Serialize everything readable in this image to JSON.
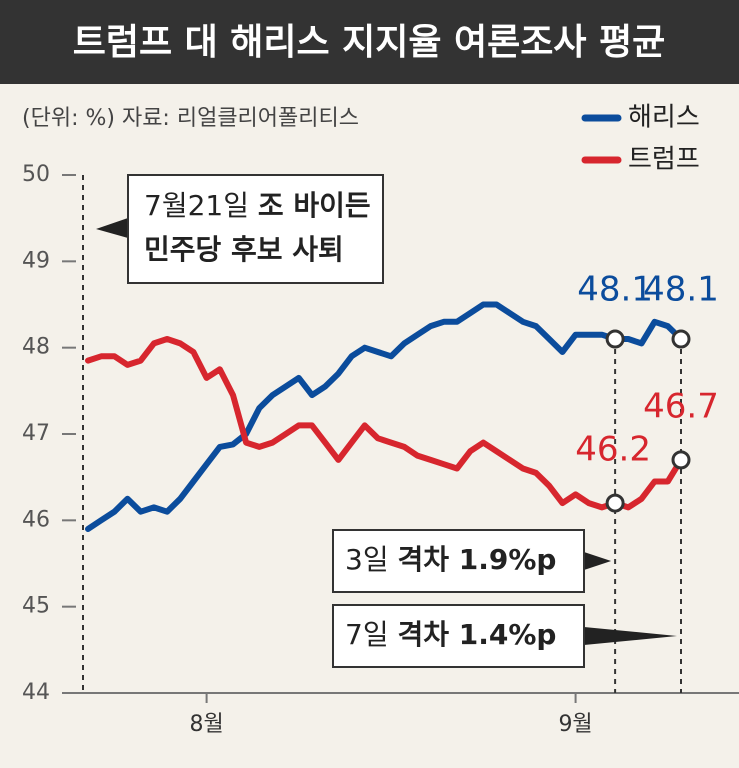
{
  "chart_data": {
    "type": "line",
    "title": "트럼프 대 해리스 지지율 여론조사 평균",
    "subtitle": "(단위: %) 자료: 리얼클리어폴리티스",
    "categories": [
      null,
      null,
      null,
      null,
      null,
      null,
      null,
      null,
      null,
      "8월",
      null,
      null,
      null,
      null,
      null,
      null,
      null,
      null,
      null,
      null,
      null,
      null,
      null,
      null,
      null,
      null,
      null,
      null,
      null,
      null,
      null,
      null,
      null,
      null,
      null,
      null,
      null,
      "9월",
      null,
      null,
      null,
      null,
      null,
      null,
      null,
      null
    ],
    "series": [
      {
        "name": "해리스",
        "color": "#0b4c9c",
        "values": [
          45.9,
          46.0,
          46.1,
          46.25,
          46.1,
          46.15,
          46.1,
          46.25,
          46.45,
          46.65,
          46.85,
          46.88,
          47.0,
          47.3,
          47.45,
          47.55,
          47.65,
          47.45,
          47.55,
          47.7,
          47.9,
          48.0,
          47.95,
          47.9,
          48.05,
          48.15,
          48.25,
          48.3,
          48.3,
          48.4,
          48.5,
          48.5,
          48.4,
          48.3,
          48.25,
          48.1,
          47.95,
          48.15,
          48.15,
          48.15,
          48.1,
          48.1,
          48.05,
          48.3,
          48.25,
          48.1
        ]
      },
      {
        "name": "트럼프",
        "color": "#d7262e",
        "values": [
          47.85,
          47.9,
          47.9,
          47.8,
          47.85,
          48.05,
          48.1,
          48.05,
          47.95,
          47.65,
          47.75,
          47.45,
          46.9,
          46.85,
          46.9,
          47.0,
          47.1,
          47.1,
          46.9,
          46.7,
          46.9,
          47.1,
          46.95,
          46.9,
          46.85,
          46.75,
          46.7,
          46.65,
          46.6,
          46.8,
          46.9,
          46.8,
          46.7,
          46.6,
          46.55,
          46.4,
          46.2,
          46.3,
          46.2,
          46.15,
          46.2,
          46.15,
          46.25,
          46.45,
          46.45,
          46.7
        ]
      }
    ],
    "ylim": [
      44,
      50
    ],
    "yticks": [
      44,
      45,
      46,
      47,
      48,
      49,
      50
    ],
    "legend": "top-right",
    "annotations": [
      {
        "date": "7월21일",
        "lines": [
          "조 바이든",
          "민주당 후보 사퇴"
        ]
      },
      {
        "date": "3일",
        "text": "격차 1.9%p"
      },
      {
        "date": "7일",
        "text": "격차 1.4%p"
      }
    ]
  }
}
